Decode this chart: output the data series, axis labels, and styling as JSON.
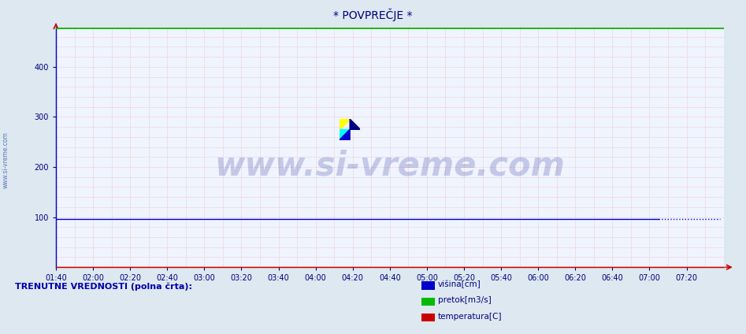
{
  "title": "* POVPREČJE *",
  "background_color": "#dde8f0",
  "plot_bg_color": "#f0f4ff",
  "xlim_minutes": [
    100,
    460
  ],
  "x_tick_labels": [
    "01:40",
    "02:00",
    "02:20",
    "02:40",
    "03:00",
    "03:20",
    "03:40",
    "04:00",
    "04:20",
    "04:40",
    "05:00",
    "05:20",
    "05:40",
    "06:00",
    "06:20",
    "06:40",
    "07:00",
    "07:20"
  ],
  "x_tick_values": [
    100,
    120,
    140,
    160,
    180,
    200,
    220,
    240,
    260,
    280,
    300,
    320,
    340,
    360,
    380,
    400,
    420,
    440
  ],
  "ylim": [
    0,
    480
  ],
  "y_ticks": [
    100,
    200,
    300,
    400
  ],
  "grid_dot_color": "#e8aaaa",
  "grid_major_color": "#e8aaaa",
  "line_visina_color": "#0000cc",
  "line_pretok_color": "#00bb00",
  "line_temperatura_color": "#cc0000",
  "visina_value": 97,
  "pretok_value": 477,
  "left_spine_color": "#0000cc",
  "bottom_spine_color": "#cc0000",
  "title_color": "#000080",
  "tick_color": "#000080",
  "watermark_text": "www.si-vreme.com",
  "sidewater_text": "www.si-vreme.com",
  "legend_label1": "višina[cm]",
  "legend_label2": "pretok[m3/s]",
  "legend_label3": "temperatura[C]",
  "legend_color1": "#0000cc",
  "legend_color2": "#00bb00",
  "legend_color3": "#cc0000",
  "bottom_text": "TRENUTNE VREDNOSTI (polna črta):",
  "visina_solid_end": 425,
  "visina_dot_start": 425,
  "visina_dot_end": 458
}
